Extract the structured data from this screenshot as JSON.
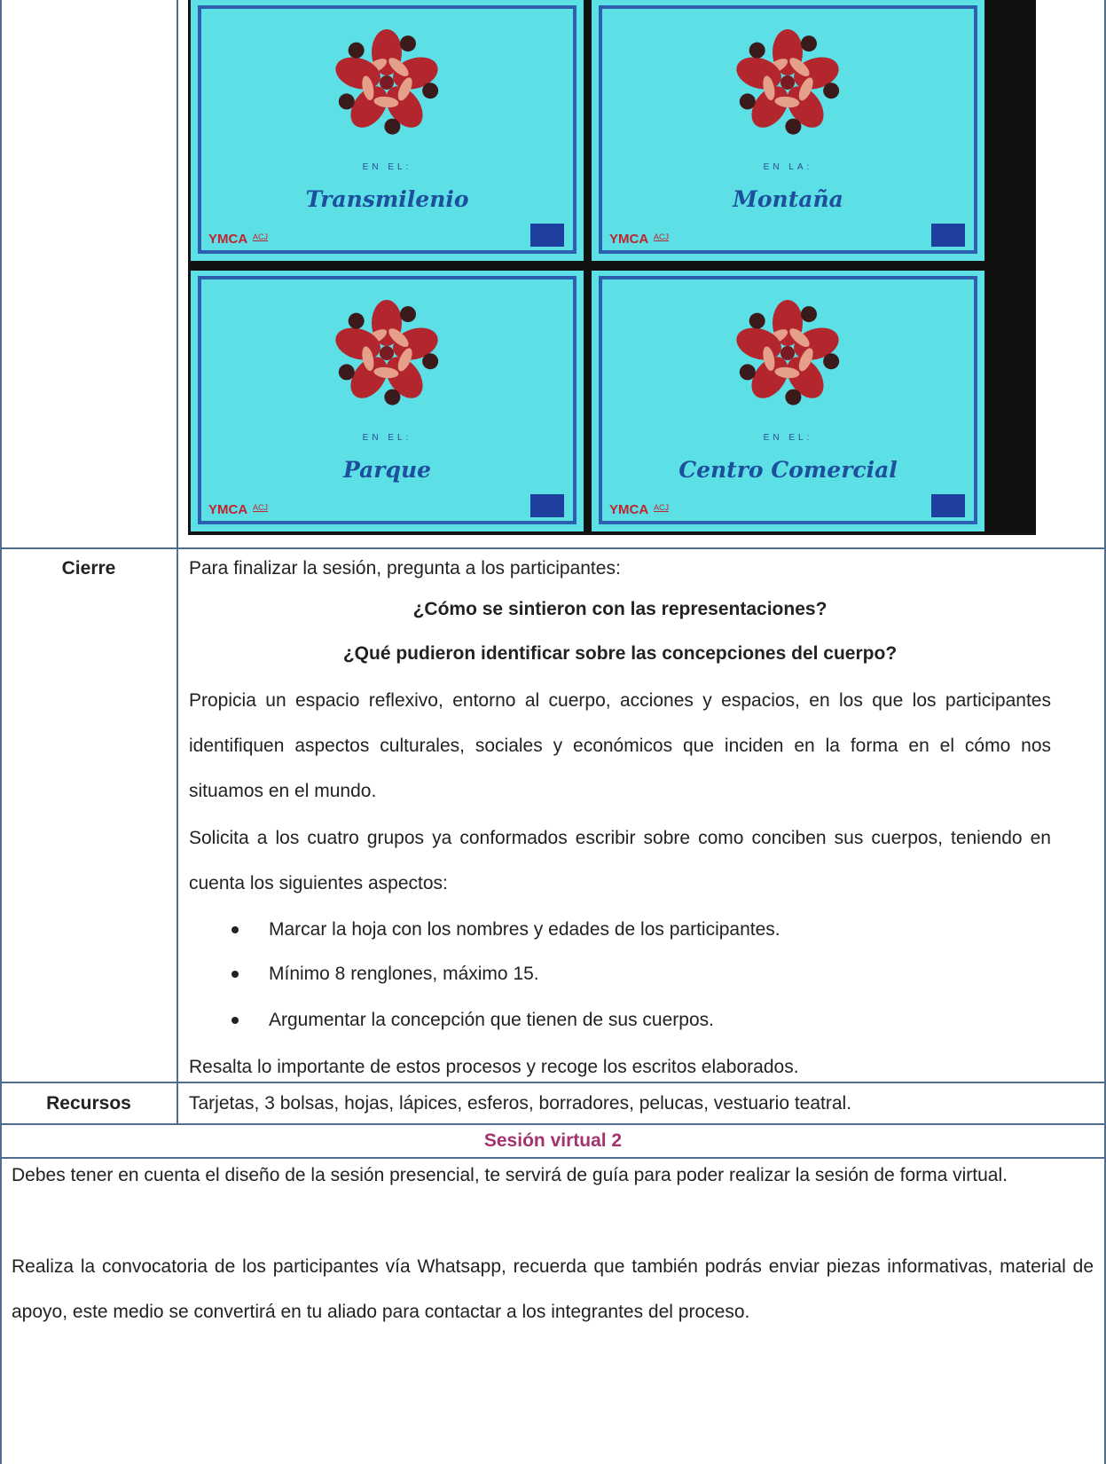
{
  "cards": [
    {
      "prefix": "EN EL:",
      "title": "Transmilenio"
    },
    {
      "prefix": "EN LA:",
      "title": "Montaña"
    },
    {
      "prefix": "EN EL:",
      "title": "Parque"
    },
    {
      "prefix": "EN EL:",
      "title": "Centro Comercial"
    }
  ],
  "logo": "YMCA",
  "logo_secondary": "ACJ",
  "closing": {
    "label": "Cierre",
    "intro": "Para finalizar la sesión, pregunta a los participantes:",
    "questions": [
      "¿Cómo se sintieron con las representaciones?",
      "¿Qué pudieron identificar sobre las concepciones del cuerpo?"
    ],
    "paragraphs": [
      "Propicia un espacio reflexivo, entorno al cuerpo, acciones y espacios, en los que los participantes identifiquen aspectos culturales, sociales y económicos que inciden en la forma en el cómo nos situamos en el mundo.",
      "Solicita a los cuatro grupos ya conformados escribir sobre como conciben sus cuerpos, teniendo en cuenta los siguientes aspectos:"
    ],
    "bullets": [
      "Marcar la hoja con los nombres y edades de los participantes.",
      "Mínimo 8 renglones, máximo 15.",
      "Argumentar la concepción que tienen de sus cuerpos."
    ],
    "final": "Resalta lo importante de estos procesos y recoge los escritos elaborados."
  },
  "resources": {
    "label": "Recursos",
    "text": "Tarjetas, 3 bolsas, hojas, lápices, esferos, borradores, pelucas, vestuario teatral."
  },
  "virtual": {
    "title": "Sesión virtual 2",
    "paragraphs": [
      "Debes tener en cuenta el diseño de la sesión presencial, te servirá de guía para poder realizar la sesión de forma virtual.",
      "Realiza la convocatoria de los participantes vía Whatsapp, recuerda que también podrás enviar piezas informativas, material de apoyo, este medio se convertirá en tu aliado para contactar a los integrantes del proceso."
    ]
  }
}
